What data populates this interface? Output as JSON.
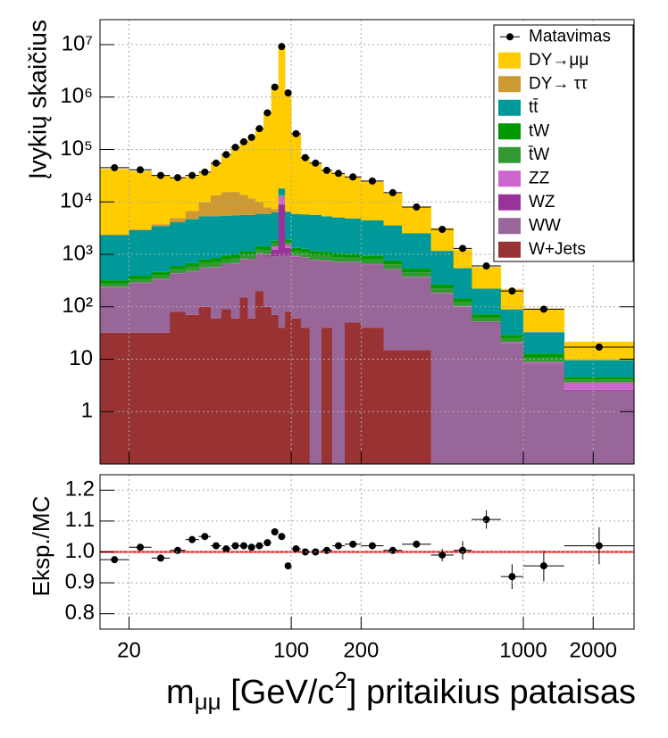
{
  "chart_data": {
    "type": "stacked_histogram",
    "ylabel": "Įvykių skaičius",
    "xlabel": {
      "base": "m",
      "sub": "μμ",
      "unit": " [GeV/c",
      "sup": "2",
      "rest": "] pritaikius pataisas"
    },
    "xscale": "log",
    "yscale": "log",
    "grid": true,
    "legend": "top-right",
    "xlim": [
      15,
      3000
    ],
    "xticks": [
      20,
      100,
      200,
      1000,
      2000
    ],
    "ylim": [
      0.1,
      30000000
    ],
    "yticks": [
      1,
      10,
      {
        "value": 100,
        "label": "10²"
      },
      {
        "value": 1000,
        "label": "10³"
      },
      {
        "value": 10000,
        "label": "10⁴"
      },
      {
        "value": 100000,
        "label": "10⁵"
      },
      {
        "value": 1000000,
        "label": "10⁶"
      },
      {
        "value": 10000000,
        "label": "10⁷"
      }
    ],
    "bins": [
      15,
      20,
      25,
      30,
      35,
      40,
      45,
      50,
      55,
      60,
      65,
      70,
      76,
      82,
      88,
      94,
      100,
      110,
      120,
      135,
      150,
      170,
      200,
      250,
      300,
      400,
      500,
      600,
      800,
      1000,
      1500,
      3000
    ],
    "data": {
      "name": "Matavimas",
      "color": "#000000",
      "values": [
        45000,
        41000,
        32000,
        29000,
        32000,
        37000,
        55000,
        80000,
        110000,
        140000,
        170000,
        250000,
        500000,
        1550000,
        9200000,
        1200000,
        200000,
        70000,
        55000,
        40000,
        35000,
        30000,
        25000,
        15000,
        8000,
        3000,
        1300,
        600,
        200,
        90,
        17
      ]
    },
    "series": [
      {
        "name": "DY→μμ",
        "color": "#ffcc00",
        "values": [
          40000,
          36000,
          28000,
          24000,
          24000,
          26000,
          42000,
          65000,
          95000,
          125000,
          160000,
          240000,
          490000,
          1500000,
          9000000,
          1200000,
          190000,
          63000,
          50000,
          35000,
          30000,
          25000,
          20000,
          11000,
          5500,
          2000,
          700,
          350,
          130,
          60,
          12
        ]
      },
      {
        "name": "DY→ ττ",
        "color": "#cc9933",
        "values": [
          50,
          100,
          300,
          800,
          2000,
          4500,
          8000,
          10000,
          10000,
          8000,
          6000,
          4000,
          2000,
          1000,
          500,
          200,
          100,
          50,
          20,
          10,
          5,
          3,
          2,
          1,
          0.5,
          0,
          0,
          0,
          0,
          0,
          0
        ]
      },
      {
        "name": "tt̄",
        "color": "#009999",
        "values": [
          2000,
          2500,
          3000,
          3500,
          4000,
          4500,
          4500,
          4500,
          4500,
          4500,
          4500,
          4500,
          4500,
          4500,
          4500,
          4500,
          4500,
          4500,
          4500,
          4200,
          4000,
          3800,
          3500,
          2800,
          2000,
          900,
          400,
          150,
          60,
          20,
          5
        ]
      },
      {
        "name": "tW",
        "color": "#009900",
        "values": [
          40,
          50,
          60,
          80,
          100,
          120,
          140,
          150,
          160,
          170,
          180,
          190,
          200,
          200,
          220,
          200,
          200,
          200,
          190,
          180,
          170,
          160,
          150,
          120,
          80,
          40,
          20,
          10,
          4,
          2,
          0.5
        ]
      },
      {
        "name": "t̄W",
        "color": "#339933",
        "values": [
          40,
          50,
          60,
          80,
          100,
          120,
          140,
          150,
          160,
          170,
          180,
          190,
          200,
          200,
          220,
          200,
          200,
          200,
          190,
          180,
          170,
          160,
          150,
          120,
          80,
          40,
          20,
          10,
          4,
          2,
          0.5
        ]
      },
      {
        "name": "ZZ",
        "color": "#cc66cc",
        "values": [
          3,
          3,
          3,
          3,
          4,
          4,
          5,
          6,
          8,
          10,
          15,
          20,
          40,
          200,
          4000,
          200,
          30,
          15,
          10,
          8,
          7,
          6,
          5,
          4,
          3,
          2,
          1.5,
          1,
          0.7,
          0.5,
          1
        ]
      },
      {
        "name": "WZ",
        "color": "#993399",
        "values": [
          5,
          5,
          5,
          6,
          6,
          7,
          8,
          10,
          12,
          15,
          20,
          30,
          60,
          300,
          8000,
          400,
          40,
          20,
          15,
          12,
          10,
          8,
          8,
          6,
          5,
          3,
          2,
          1,
          0.5,
          0.3,
          0.1
        ]
      },
      {
        "name": "WW",
        "color": "#996699",
        "values": [
          200,
          250,
          300,
          350,
          400,
          450,
          500,
          550,
          600,
          650,
          700,
          800,
          800,
          850,
          900,
          850,
          800,
          800,
          750,
          700,
          700,
          650,
          600,
          500,
          350,
          180,
          100,
          50,
          20,
          8,
          2.5
        ]
      },
      {
        "name": "W+Jets",
        "color": "#993333",
        "values": [
          32,
          32,
          32,
          80,
          70,
          100,
          60,
          90,
          60,
          150,
          60,
          200,
          100,
          70,
          40,
          80,
          60,
          40,
          0,
          40,
          0,
          50,
          40,
          15,
          15,
          0,
          0,
          0,
          0,
          0,
          0
        ]
      }
    ],
    "ratio": {
      "ylabel": "Eksp./MC",
      "ylim": [
        0.75,
        1.25
      ],
      "yticks": [
        0.8,
        0.9,
        {
          "value": 1,
          "label": "1.0"
        },
        1.1,
        1.2
      ],
      "line": 1,
      "line_color": "#ff0000",
      "values": [
        0.975,
        1.015,
        0.98,
        1.005,
        1.04,
        1.05,
        1.02,
        1.01,
        1.02,
        1.02,
        1.015,
        1.02,
        1.03,
        1.065,
        1.05,
        0.955,
        1.01,
        1,
        1,
        1.005,
        1.02,
        1.025,
        1.02,
        1.005,
        1.025,
        0.99,
        1.005,
        1.105,
        0.92,
        0.955,
        1.02
      ],
      "errors": [
        0.008,
        0.008,
        0.008,
        0.008,
        0.007,
        0.007,
        0.006,
        0.005,
        0.005,
        0.005,
        0.005,
        0.004,
        0.003,
        0.002,
        0.001,
        0.002,
        0.004,
        0.005,
        0.005,
        0.006,
        0.006,
        0.006,
        0.007,
        0.009,
        0.012,
        0.02,
        0.03,
        0.03,
        0.04,
        0.05,
        0.06
      ]
    }
  }
}
